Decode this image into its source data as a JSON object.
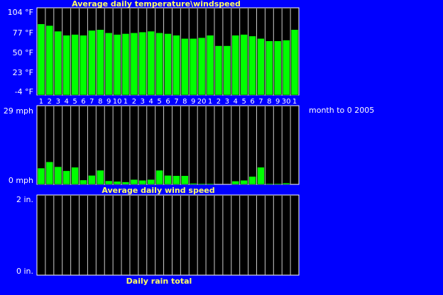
{
  "chart_data": [
    {
      "type": "bar",
      "title": "Average daily temperature\\windspeed",
      "yticks": [
        "104 °F",
        "77 °F",
        "50 °F",
        "23 °F",
        "-4 °F"
      ],
      "ylim": [
        -4,
        104
      ],
      "categories": [
        "1",
        "2",
        "3",
        "4",
        "5",
        "6",
        "7",
        "8",
        "9",
        "10",
        "1",
        "2",
        "3",
        "4",
        "5",
        "6",
        "7",
        "8",
        "9",
        "20",
        "1",
        "2",
        "3",
        "4",
        "5",
        "6",
        "7",
        "8",
        "9",
        "30",
        "1"
      ],
      "values": [
        84,
        82,
        75,
        70,
        71,
        70,
        76,
        77,
        73,
        71,
        72,
        73,
        74,
        75,
        73,
        72,
        70,
        66,
        66,
        67,
        70,
        57,
        57,
        70,
        71,
        69,
        66,
        63,
        63,
        64,
        77
      ],
      "colors": {
        "bar": "#00ff00",
        "plot_bg": "#000000",
        "divider": "#cccccc",
        "frame": "#ffffff"
      }
    },
    {
      "type": "bar",
      "title": "Average daily wind speed",
      "yticks": [
        "29 mph",
        "0 mph"
      ],
      "ylim": [
        0,
        29
      ],
      "values": [
        6.0,
        8.3,
        6.5,
        5.0,
        6.3,
        1.6,
        3.3,
        5.2,
        1.3,
        1.1,
        0.9,
        1.8,
        1.5,
        1.8,
        5.2,
        3.3,
        3.2,
        3.2,
        0.4,
        0.3,
        0.3,
        0,
        0,
        1.2,
        1.5,
        2.9,
        6.3,
        0.3,
        0.3,
        0.5,
        0
      ],
      "colors": {
        "bar": "#00ff00"
      }
    },
    {
      "type": "bar",
      "title": "Daily rain total",
      "yticks": [
        "2 in.",
        "0 in."
      ],
      "ylim": [
        0,
        2
      ],
      "values": [
        0,
        0,
        0,
        0,
        0,
        0,
        0,
        0,
        0,
        0,
        0,
        0,
        0,
        0,
        0,
        0,
        0,
        0,
        0,
        0,
        0,
        0,
        0,
        0,
        0,
        0,
        0,
        0,
        0,
        0,
        0
      ],
      "colors": {
        "bar": "#00ff00"
      }
    }
  ],
  "side_note": "month to 0 2005"
}
